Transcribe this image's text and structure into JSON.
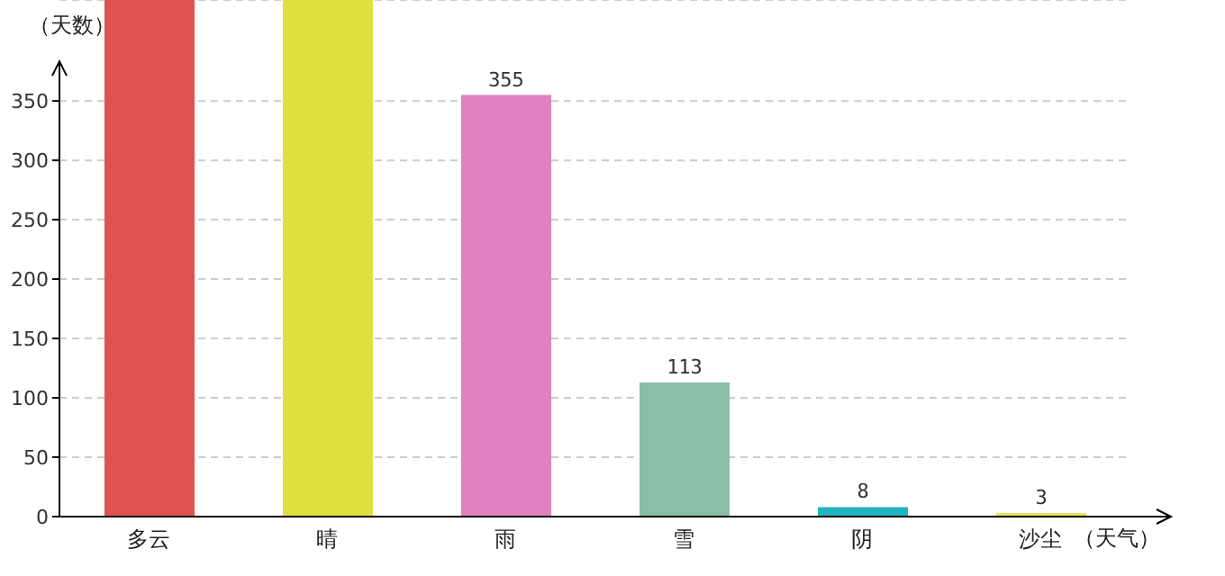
{
  "chart_data": {
    "type": "bar",
    "xlabel": "（天气）",
    "ylabel": "（天数）",
    "categories": [
      "多云",
      "晴",
      "雨",
      "雪",
      "阴",
      "沙尘"
    ],
    "values": [
      435,
      435,
      355,
      113,
      8,
      3
    ],
    "colors": [
      "#e05252",
      "#dfe03f",
      "#df82bf",
      "#88bfa6",
      "#1fb3c0",
      "#e9e35e"
    ],
    "value_labels": [
      null,
      null,
      "355",
      "113",
      "8",
      "3"
    ],
    "ylim": [
      0,
      435
    ],
    "yticks": [
      0,
      50,
      100,
      150,
      200,
      250,
      300,
      350
    ],
    "grid": "y"
  }
}
